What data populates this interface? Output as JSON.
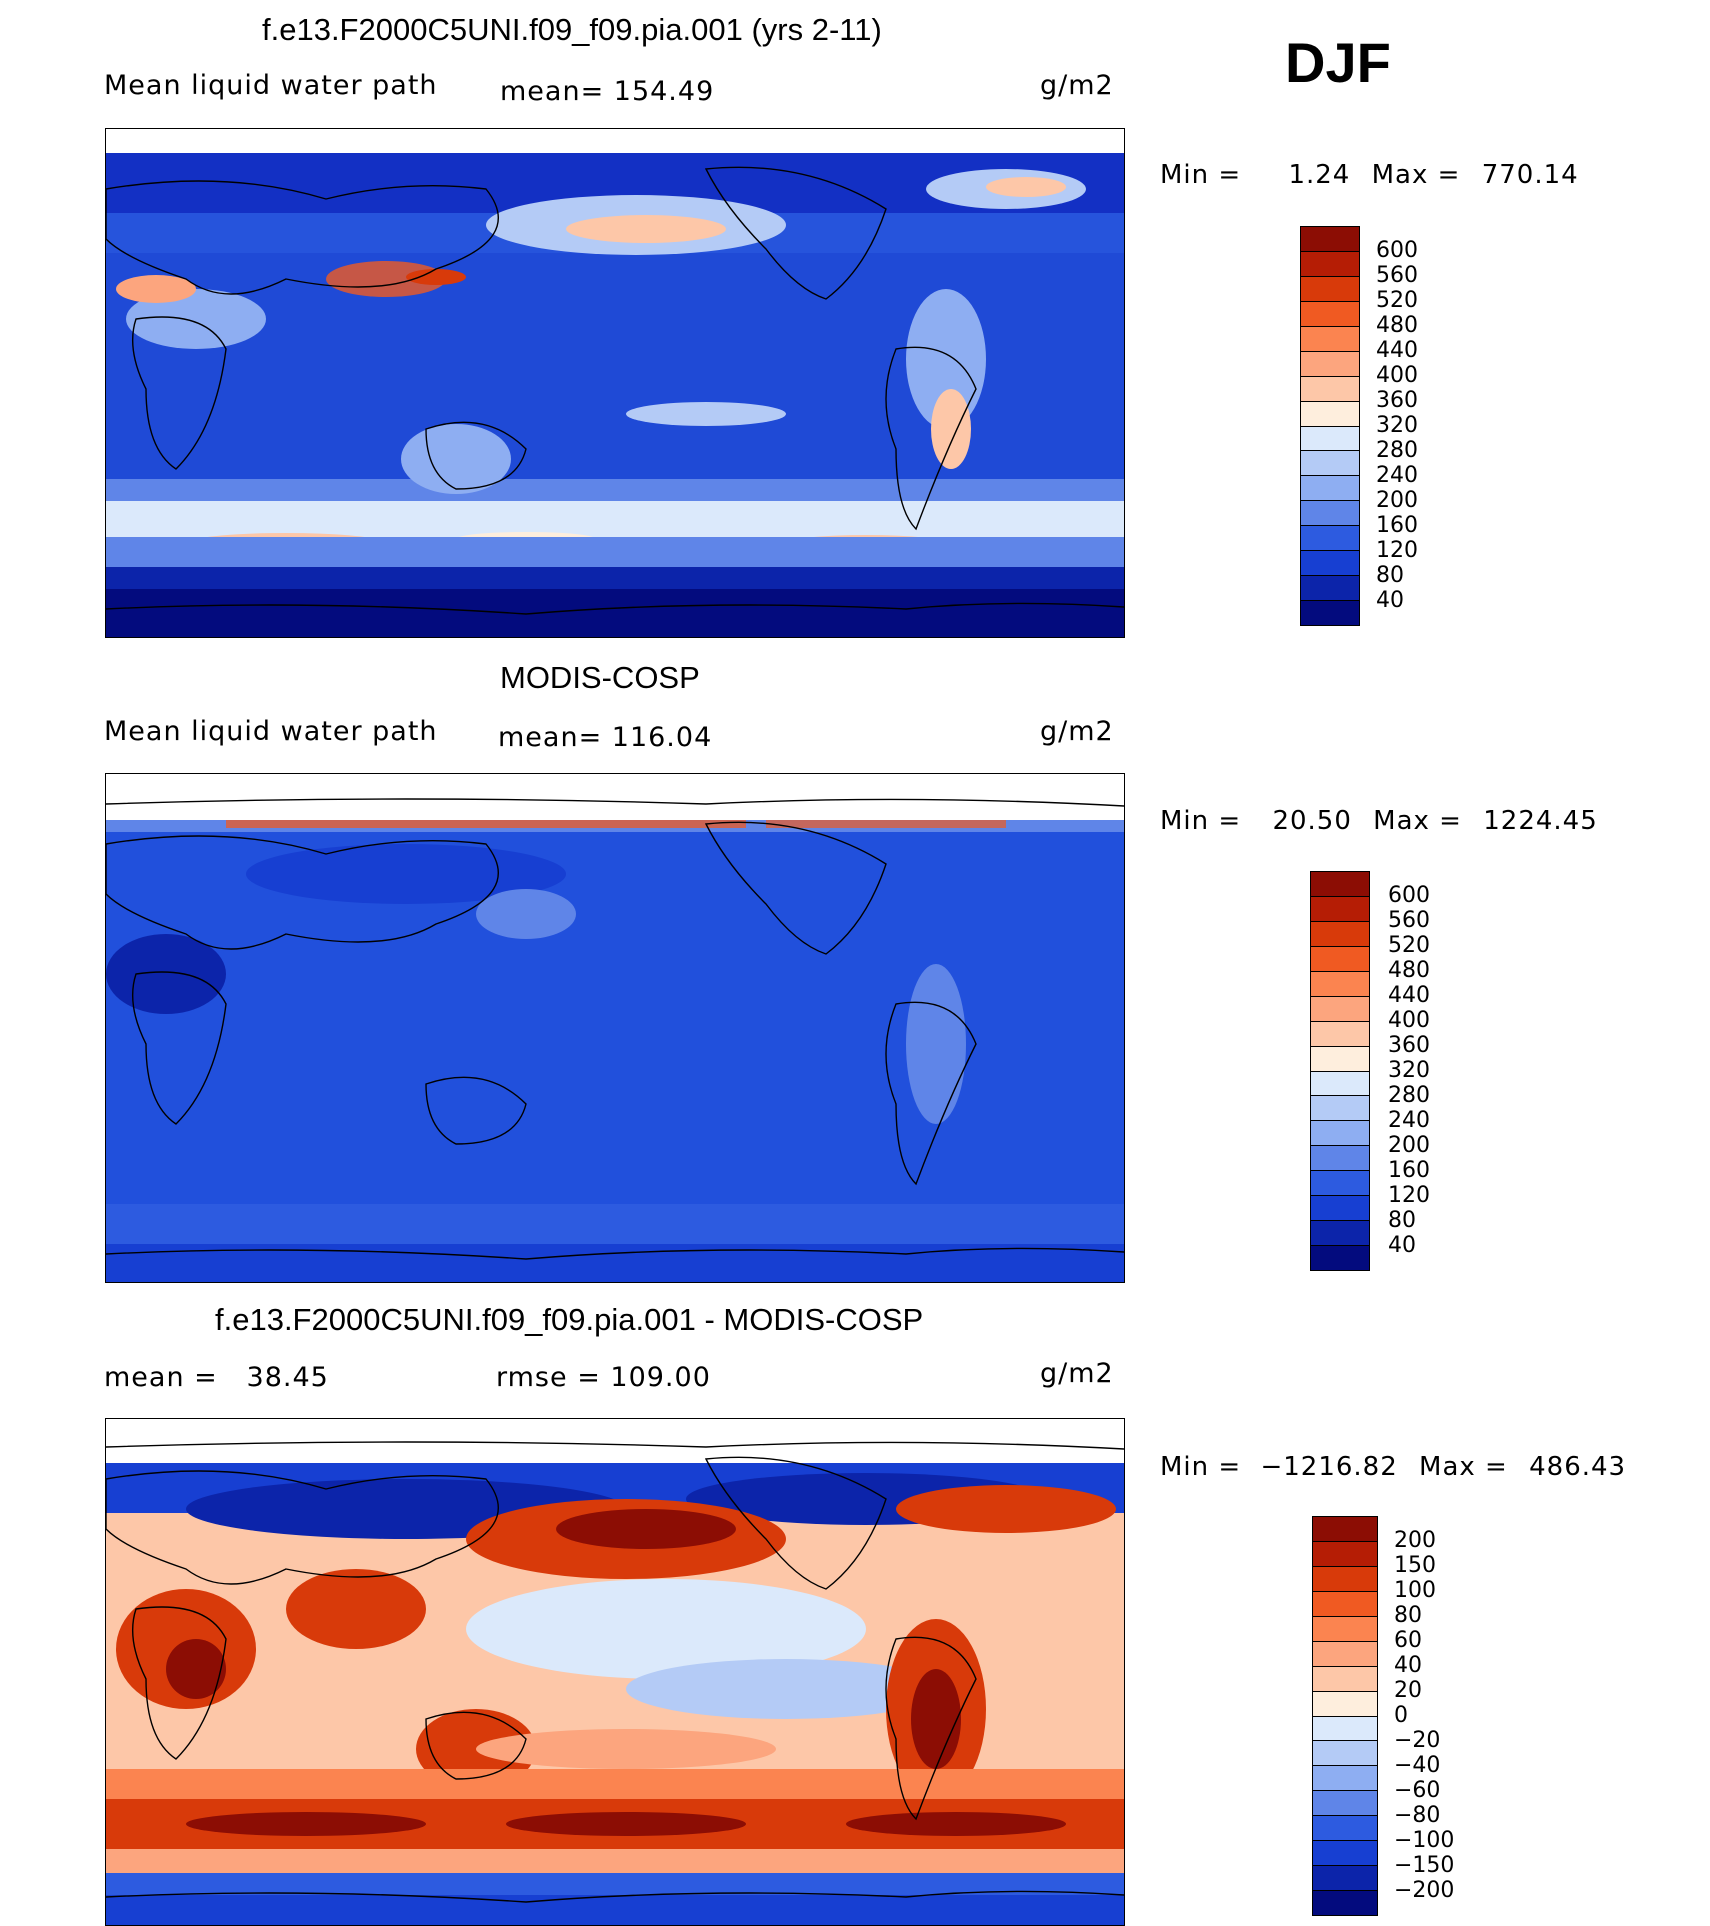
{
  "season": "DJF",
  "unit": "g/m2",
  "panels": [
    {
      "title": "f.e13.F2000C5UNI.f09_f09.pia.001 (yrs 2-11)",
      "left_label": "Mean liquid water path",
      "center_label": "mean= 154.49",
      "right_label": "g/m2",
      "min_label": "Min =",
      "min_value": "1.24",
      "max_label": "Max =",
      "max_value": "770.14",
      "colorbar_labels": [
        "600",
        "560",
        "520",
        "480",
        "440",
        "400",
        "360",
        "320",
        "280",
        "240",
        "200",
        "160",
        "120",
        "80",
        "40"
      ],
      "colors": [
        "#8c0d04",
        "#b51d05",
        "#d83a0a",
        "#f05a22",
        "#fb8450",
        "#fca57e",
        "#fdc7a8",
        "#feeedd",
        "#dbe9fb",
        "#b4cbf6",
        "#8eaef2",
        "#5f85e8",
        "#2d5be0",
        "#173fd2",
        "#0c24aa",
        "#030b7e"
      ],
      "map_style": "model"
    },
    {
      "title": "MODIS-COSP",
      "left_label": "Mean liquid water path",
      "center_label": "mean= 116.04",
      "right_label": "g/m2",
      "min_label": "Min =",
      "min_value": "20.50",
      "max_label": "Max =",
      "max_value": "1224.45",
      "colorbar_labels": [
        "600",
        "560",
        "520",
        "480",
        "440",
        "400",
        "360",
        "320",
        "280",
        "240",
        "200",
        "160",
        "120",
        "80",
        "40"
      ],
      "colors": [
        "#8c0d04",
        "#b51d05",
        "#d83a0a",
        "#f05a22",
        "#fb8450",
        "#fca57e",
        "#fdc7a8",
        "#feeedd",
        "#dbe9fb",
        "#b4cbf6",
        "#8eaef2",
        "#5f85e8",
        "#2d5be0",
        "#173fd2",
        "#0c24aa",
        "#030b7e"
      ],
      "map_style": "obs"
    },
    {
      "title": "f.e13.F2000C5UNI.f09_f09.pia.001 - MODIS-COSP",
      "left_label": "mean =   38.45",
      "center_label": "rmse = 109.00",
      "right_label": "g/m2",
      "min_label": "Min =",
      "min_value": "−1216.82",
      "max_label": "Max =",
      "max_value": "486.43",
      "colorbar_labels": [
        "200",
        "150",
        "100",
        "80",
        "60",
        "40",
        "20",
        "0",
        "−20",
        "−40",
        "−60",
        "−80",
        "−100",
        "−150",
        "−200"
      ],
      "colors": [
        "#8c0d04",
        "#b51d05",
        "#d83a0a",
        "#f05a22",
        "#fb8450",
        "#fca57e",
        "#fdc7a8",
        "#feeedd",
        "#dbe9fb",
        "#b4cbf6",
        "#8eaef2",
        "#5f85e8",
        "#2d5be0",
        "#173fd2",
        "#0c24aa",
        "#030b7e"
      ],
      "map_style": "diff"
    }
  ]
}
